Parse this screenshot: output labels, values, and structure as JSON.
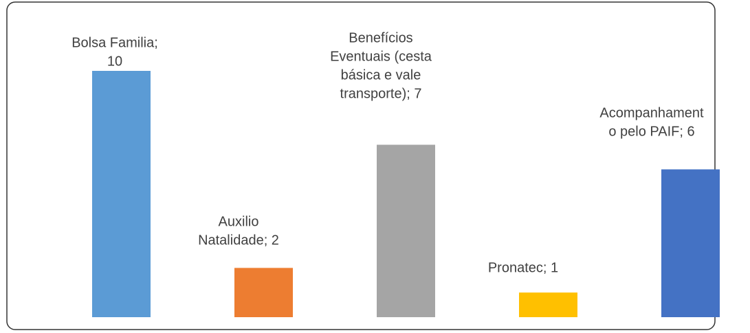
{
  "chart_data": {
    "type": "bar",
    "values": [
      10,
      2,
      7,
      1,
      6
    ],
    "value_labels": [
      [
        "Bolsa Familia;",
        "10"
      ],
      [
        "Auxilio",
        "Natalidade; 2"
      ],
      [
        "Benefícios",
        "Eventuais (cesta",
        "básica e vale",
        "transporte); 7"
      ],
      [
        "Pronatec; 1"
      ],
      [
        "Acompanhament",
        "o pelo PAIF; 6"
      ]
    ],
    "colors": [
      "#5b9bd5",
      "#ed7d31",
      "#a5a5a5",
      "#ffc000",
      "#4472c4"
    ],
    "ylim": [
      0,
      10
    ]
  }
}
